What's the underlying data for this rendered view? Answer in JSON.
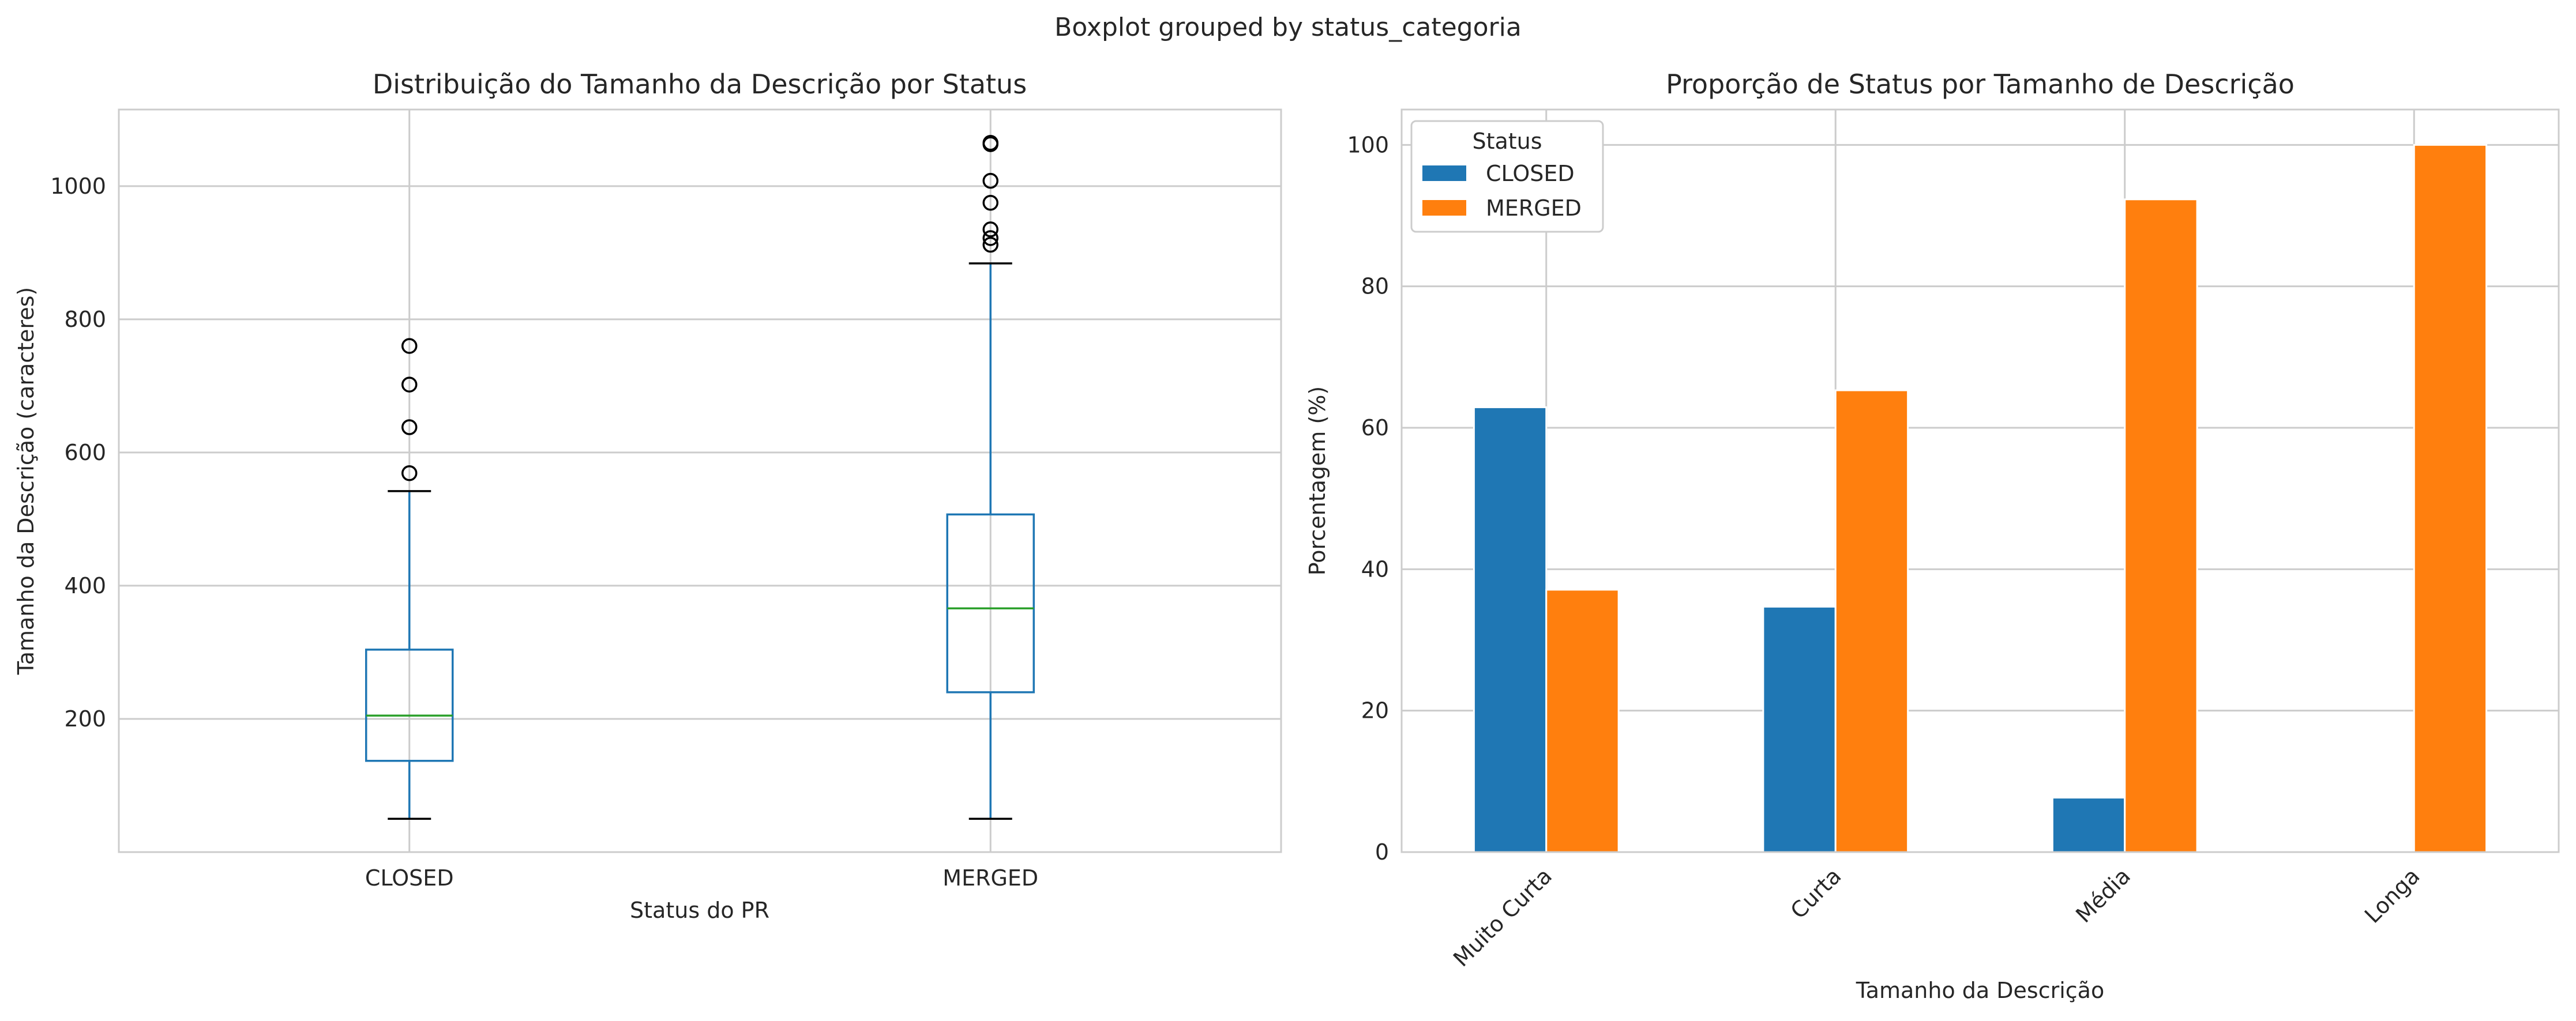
{
  "figure": {
    "suptitle": "Boxplot grouped by status_categoria"
  },
  "colors": {
    "closed": "#1f77b4",
    "merged": "#ff7f0e",
    "median": "#2ca02c",
    "grid": "#cccccc",
    "spine": "#cccccc",
    "text": "#262626"
  },
  "chart_data": [
    {
      "type": "box",
      "title": "Distribuição do Tamanho da Descrição por Status",
      "xlabel": "Status do PR",
      "ylabel": "Tamanho da Descrição (caracteres)",
      "ylim": [
        0,
        1115
      ],
      "yticks": [
        200,
        400,
        600,
        800,
        1000
      ],
      "grid": true,
      "categories": [
        "CLOSED",
        "MERGED"
      ],
      "boxes": [
        {
          "name": "CLOSED",
          "whisker_low": 50,
          "q1": 137,
          "median": 205,
          "q3": 304,
          "whisker_high": 542,
          "outliers": [
            569,
            638,
            702,
            760
          ]
        },
        {
          "name": "MERGED",
          "whisker_low": 50,
          "q1": 240,
          "median": 366,
          "q3": 507,
          "whisker_high": 884,
          "outliers": [
            912,
            922,
            935,
            975,
            1008,
            1063,
            1065
          ]
        }
      ]
    },
    {
      "type": "bar",
      "title": "Proporção de Status por Tamanho de Descrição",
      "xlabel": "Tamanho da Descrição",
      "ylabel": "Porcentagem (%)",
      "ylim": [
        0,
        105
      ],
      "yticks": [
        0,
        20,
        40,
        60,
        80,
        100
      ],
      "grid": true,
      "categories": [
        "Muito Curta",
        "Curta",
        "Média",
        "Longa"
      ],
      "series": [
        {
          "name": "CLOSED",
          "values": [
            62.9,
            34.7,
            7.7,
            0
          ]
        },
        {
          "name": "MERGED",
          "values": [
            37.1,
            65.3,
            92.3,
            100
          ]
        }
      ],
      "legend": {
        "title": "Status",
        "placement": "top-left"
      }
    }
  ]
}
